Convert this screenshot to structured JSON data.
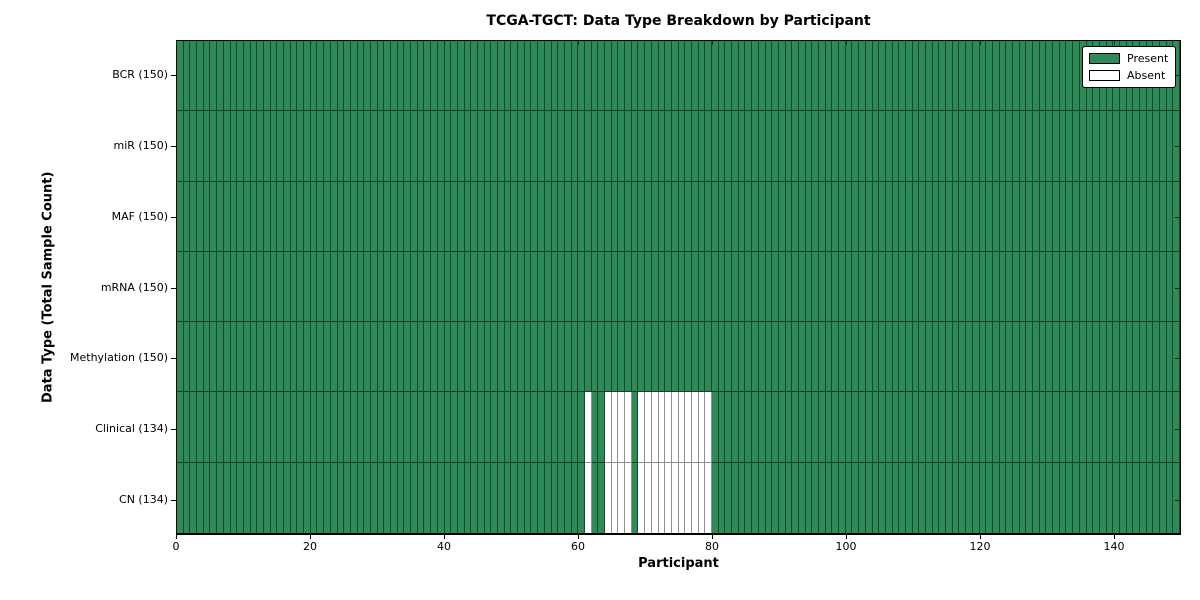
{
  "title": "TCGA-TGCT: Data Type Breakdown by Participant",
  "axes": {
    "xlabel": "Participant",
    "ylabel": "Data Type (Total Sample Count)"
  },
  "colors": {
    "present": "#2e8b57",
    "absent": "#ffffff",
    "present_edge": "#17492d",
    "absent_edge": "#909090",
    "spine": "#000000"
  },
  "chart_data": {
    "type": "heatmap",
    "title": "TCGA-TGCT: Data Type Breakdown by Participant",
    "xlabel": "Participant",
    "ylabel": "Data Type (Total Sample Count)",
    "n_participants": 150,
    "xlim": [
      0,
      150
    ],
    "x_ticks": [
      0,
      20,
      40,
      60,
      80,
      100,
      120,
      140
    ],
    "grid": false,
    "legend_position": "upper right",
    "rows": [
      {
        "label": "BCR (150)",
        "data_type": "BCR",
        "total": 150,
        "absent_participants": []
      },
      {
        "label": "miR (150)",
        "data_type": "miR",
        "total": 150,
        "absent_participants": []
      },
      {
        "label": "MAF (150)",
        "data_type": "MAF",
        "total": 150,
        "absent_participants": []
      },
      {
        "label": "mRNA (150)",
        "data_type": "mRNA",
        "total": 150,
        "absent_participants": []
      },
      {
        "label": "Methylation (150)",
        "data_type": "Methylation",
        "total": 150,
        "absent_participants": []
      },
      {
        "label": "Clinical (134)",
        "data_type": "Clinical",
        "total": 134,
        "absent_participants": [
          61,
          64,
          65,
          66,
          67,
          69,
          70,
          71,
          72,
          73,
          74,
          75,
          76,
          77,
          78,
          79
        ]
      },
      {
        "label": "CN (134)",
        "data_type": "CN",
        "total": 134,
        "absent_participants": [
          61,
          64,
          65,
          66,
          67,
          69,
          70,
          71,
          72,
          73,
          74,
          75,
          76,
          77,
          78,
          79
        ]
      }
    ],
    "legend": [
      {
        "label": "Present",
        "color": "#2e8b57"
      },
      {
        "label": "Absent",
        "color": "#ffffff"
      }
    ]
  }
}
